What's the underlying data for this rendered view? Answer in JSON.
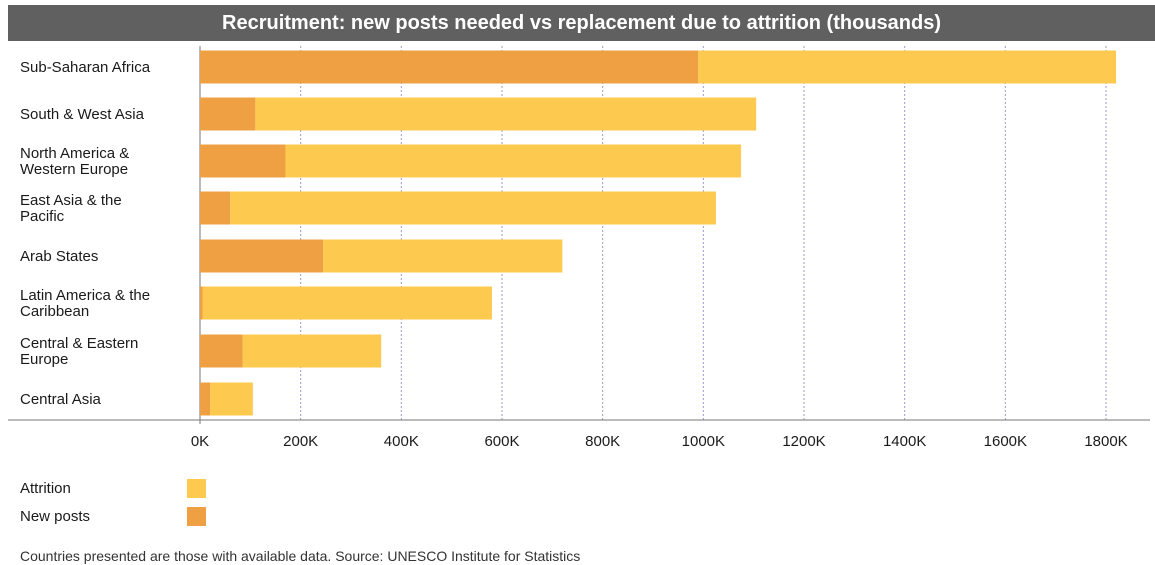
{
  "colors": {
    "title_bg": "#606060",
    "attrition": "#fdc94f",
    "new_posts": "#eea043",
    "gridline": "#9999cc",
    "axis": "#777777"
  },
  "legend": {
    "attrition_label": "Attrition",
    "new_posts_label": "New posts"
  },
  "source_note": "Countries presented are those with available data. Source: UNESCO Institute for Statistics",
  "chart_data": {
    "type": "bar",
    "orientation": "horizontal",
    "stacked": true,
    "title": "Recruitment: new posts needed vs replacement due to attrition (thousands)",
    "categories": [
      [
        "Sub-Saharan Africa"
      ],
      [
        "South & West Asia"
      ],
      [
        "North America &",
        "Western Europe"
      ],
      [
        "East Asia & the",
        "Pacific"
      ],
      [
        "Arab States"
      ],
      [
        "Latin America & the",
        "Caribbean"
      ],
      [
        "Central & Eastern",
        "Europe"
      ],
      [
        "Central Asia"
      ]
    ],
    "series": [
      {
        "name": "New posts",
        "color": "#eea043",
        "values": [
          990000,
          110000,
          170000,
          60000,
          245000,
          5000,
          85000,
          20000
        ]
      },
      {
        "name": "Attrition",
        "color": "#fdc94f",
        "values": [
          830000,
          995000,
          905000,
          965000,
          475000,
          575000,
          275000,
          85000
        ]
      }
    ],
    "xlim": [
      0,
      1800000
    ],
    "xticks": [
      0,
      200000,
      400000,
      600000,
      800000,
      1000000,
      1200000,
      1400000,
      1600000,
      1800000
    ],
    "xtick_labels": [
      "0K",
      "200K",
      "400K",
      "600K",
      "800K",
      "1000K",
      "1200K",
      "1400K",
      "1600K",
      "1800K"
    ],
    "grid": "vertical-dashed",
    "legend_position": "bottom-left"
  }
}
